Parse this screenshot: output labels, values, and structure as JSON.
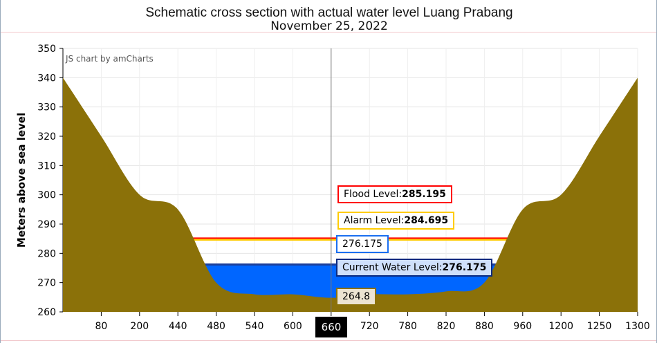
{
  "chart_data": {
    "type": "area",
    "title": "Schematic cross section with actual water level Luang Prabang",
    "subtitle": "November 25, 2022",
    "credit": "JS chart by amCharts",
    "ylabel": "Meters above sea level",
    "xlabel": "",
    "ylim": [
      260,
      350
    ],
    "yticks": [
      260,
      270,
      280,
      290,
      300,
      310,
      320,
      330,
      340,
      350
    ],
    "categories": [
      "",
      "80",
      "200",
      "440",
      "480",
      "540",
      "600",
      "660",
      "720",
      "780",
      "820",
      "880",
      "960",
      "1200",
      "1250",
      "1300"
    ],
    "ground": [
      340,
      320,
      300,
      295,
      270,
      266,
      266,
      264.8,
      266,
      266,
      267,
      270,
      295,
      300,
      320,
      340
    ],
    "grid": true,
    "cursor": {
      "category": "660",
      "ground_label": "264.8",
      "water_label": "276.175"
    },
    "levels": {
      "flood": {
        "label": "Flood Level:",
        "value": "285.195",
        "color": "#ff0000"
      },
      "alarm": {
        "label": "Alarm Level:",
        "value": "284.695",
        "color": "#ffcc00"
      },
      "water": {
        "label": "Current Water Level:",
        "value": "276.175",
        "color": "#0066ff"
      }
    },
    "colors": {
      "ground": "#8b7109",
      "water": "#0066ff"
    }
  }
}
